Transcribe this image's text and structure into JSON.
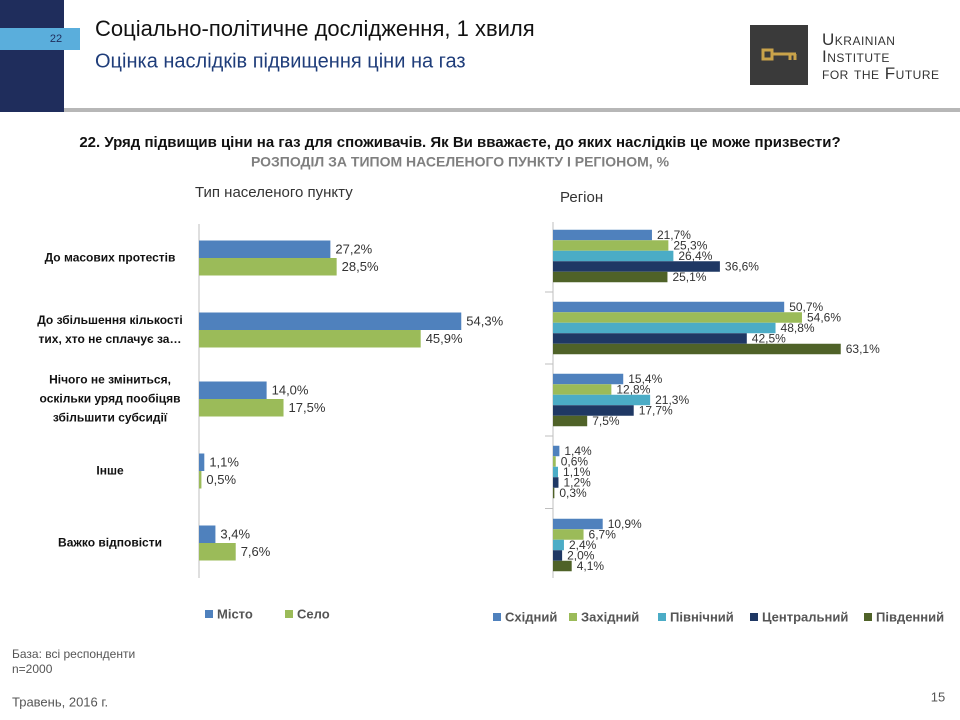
{
  "header": {
    "slide_number": "22",
    "title": "Соціально-політичне дослідження, 1 хвиля",
    "subtitle": "Оцінка наслідків підвищення ціни на газ",
    "logo": [
      "Ukrainian",
      "Institute",
      "for the Future"
    ]
  },
  "question": "22. Уряд підвищив ціни на газ для споживачів. Як Ви вважаєте, до яких наслідків це може призвести?",
  "subheading": "РОЗПОДІЛ ЗА ТИПОМ НАСЕЛЕНОГО ПУНКТУ І РЕГІОНОМ, %",
  "chart_data": [
    {
      "type": "bar",
      "orientation": "horizontal",
      "title": "Тип населеного пункту",
      "categories": [
        "До масових протестів",
        "До збільшення кількості тих, хто не сплачує за…",
        "Нічого не зміниться, оскільки уряд пообіцяв збільшити  субсидії",
        "Інше",
        "Важко відповісти"
      ],
      "series": [
        {
          "name": "Місто",
          "color": "#4f81bd",
          "values": [
            27.2,
            54.3,
            14.0,
            1.1,
            3.4
          ],
          "value_labels": [
            "27,2%",
            "54,3%",
            "14,0%",
            "1,1%",
            "3,4%"
          ]
        },
        {
          "name": "Село",
          "color": "#9bbb59",
          "values": [
            28.5,
            45.9,
            17.5,
            0.5,
            7.6
          ],
          "value_labels": [
            "28,5%",
            "45,9%",
            "17,5%",
            "0,5%",
            "7,6%"
          ]
        }
      ]
    },
    {
      "type": "bar",
      "orientation": "horizontal",
      "title": "Регіон",
      "categories": [
        null,
        null,
        null,
        null,
        null
      ],
      "series": [
        {
          "name": "Східний",
          "color": "#4f81bd",
          "values": [
            21.7,
            50.7,
            15.4,
            1.4,
            10.9
          ],
          "value_labels": [
            "21,7%",
            "50,7%",
            "15,4%",
            "1,4%",
            "10,9%"
          ]
        },
        {
          "name": "Західний",
          "color": "#9bbb59",
          "values": [
            25.3,
            54.6,
            12.8,
            0.6,
            6.7
          ],
          "value_labels": [
            "25,3%",
            "54,6%",
            "12,8%",
            "0,6%",
            "6,7%"
          ]
        },
        {
          "name": "Північний",
          "color": "#4bacc6",
          "values": [
            26.4,
            48.8,
            21.3,
            1.1,
            2.4
          ],
          "value_labels": [
            "26,4%",
            "48,8%",
            "21,3%",
            "1,1%",
            "2,4%"
          ]
        },
        {
          "name": "Центральний",
          "color": "#1f3864",
          "values": [
            36.6,
            42.5,
            17.7,
            1.2,
            2.0
          ],
          "value_labels": [
            "36,6%",
            "42,5%",
            "17,7%",
            "1,2%",
            "2,0%"
          ]
        },
        {
          "name": "Південний",
          "color": "#4f6228",
          "values": [
            25.1,
            63.1,
            7.5,
            0.3,
            4.1
          ],
          "value_labels": [
            "25,1%",
            "63,1%",
            "7,5%",
            "0,3%",
            "4,1%"
          ]
        }
      ]
    }
  ],
  "footer": {
    "base": "База: всі респонденти",
    "sample": "n=2000",
    "date": "Травень, 2016 г.",
    "page": "15"
  }
}
